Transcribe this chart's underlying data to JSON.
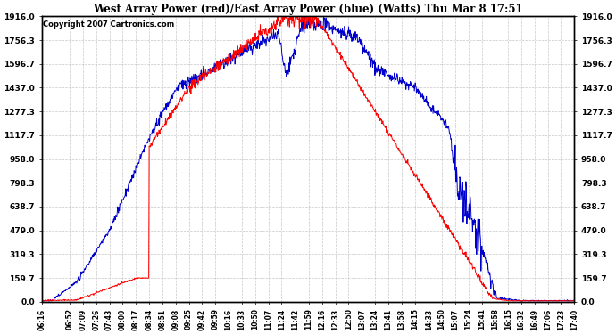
{
  "title": "West Array Power (red)/East Array Power (blue) (Watts) Thu Mar 8 17:51",
  "copyright": "Copyright 2007 Cartronics.com",
  "background_color": "#ffffff",
  "plot_bg_color": "#ffffff",
  "grid_color": "#c8c8c8",
  "red_color": "#ff0000",
  "blue_color": "#0000cc",
  "y_ticks": [
    0.0,
    159.7,
    319.3,
    479.0,
    638.7,
    798.3,
    958.0,
    1117.7,
    1277.3,
    1437.0,
    1596.7,
    1756.3,
    1916.0
  ],
  "x_tick_labels": [
    "06:16",
    "06:52",
    "07:09",
    "07:26",
    "07:43",
    "08:00",
    "08:17",
    "08:34",
    "08:51",
    "09:08",
    "09:25",
    "09:42",
    "09:59",
    "10:16",
    "10:33",
    "10:50",
    "11:07",
    "11:24",
    "11:42",
    "11:59",
    "12:16",
    "12:33",
    "12:50",
    "13:07",
    "13:24",
    "13:41",
    "13:58",
    "14:15",
    "14:33",
    "14:50",
    "15:07",
    "15:24",
    "15:41",
    "15:58",
    "16:15",
    "16:32",
    "16:49",
    "17:06",
    "17:23",
    "17:40"
  ],
  "ymax": 1916.0,
  "ymin": 0.0
}
